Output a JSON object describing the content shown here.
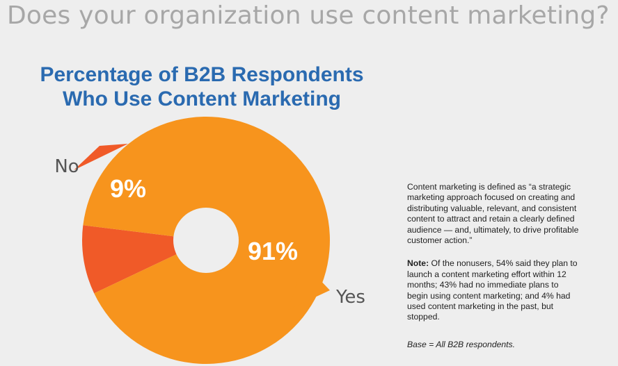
{
  "page": {
    "headline": "Does your organization use content marketing?"
  },
  "chart_data": {
    "type": "pie",
    "title_line1": "Percentage of B2B Respondents",
    "title_line2": "Who Use Content Marketing",
    "categories": [
      "No",
      "Yes"
    ],
    "values": [
      9,
      91
    ],
    "labels": [
      "9%",
      "91%"
    ],
    "colors": [
      "#f05a28",
      "#f7941d"
    ]
  },
  "sidebar": {
    "definition": "Content marketing is defined as “a strategic marketing approach focused on creating and distributing valuable, relevant, and consistent content to attract and retain a clearly defined audience — and, ultimately, to drive profitable customer action.”",
    "note_label": "Note:",
    "note_text": " Of the nonusers, 54% said they plan to launch a content marketing effort within 12 months; 43% had no immediate plans to begin using content marketing; and 4% had used content marketing in the past, but stopped.",
    "base": "Base = All B2B respondents."
  }
}
